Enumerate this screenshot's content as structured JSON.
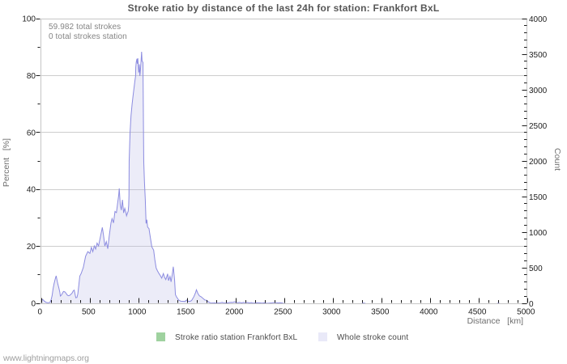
{
  "footer": "www.lightningmaps.org",
  "chart_data": {
    "type": "area",
    "title": "Stroke ratio by distance of the last 24h for station: Frankfort BxL",
    "annotations": [
      "59.982 total strokes",
      "0 total strokes station"
    ],
    "x_axis": {
      "title": "Distance   [km]",
      "min": 0,
      "max": 5000,
      "major_tick": 500,
      "minor_tick": 100,
      "tick_labels": [
        "0",
        "500",
        "1000",
        "1500",
        "2000",
        "2500",
        "3000",
        "3500",
        "4000",
        "4500",
        "5000"
      ]
    },
    "y_axis_left": {
      "title": "Percent   [%]",
      "min": 0,
      "max": 100,
      "major_tick": 20,
      "minor_tick": 10,
      "tick_labels": [
        "0",
        "20",
        "40",
        "60",
        "80",
        "100"
      ]
    },
    "y_axis_right": {
      "title": "Count",
      "min": 0,
      "max": 4000,
      "major_tick": 500,
      "minor_tick": 100,
      "tick_labels": [
        "0",
        "500",
        "1000",
        "1500",
        "2000",
        "2500",
        "3000",
        "3500",
        "4000"
      ]
    },
    "grid": {
      "horizontal_at_percent": [
        20,
        40,
        60,
        80
      ],
      "vertical": false
    },
    "legend": [
      {
        "name": "Stroke ratio station Frankfort BxL",
        "color": "#9fd29f"
      },
      {
        "name": "Whole stroke count",
        "color": "#e9e9f8"
      }
    ],
    "series": [
      {
        "name": "Stroke ratio station Frankfort BxL",
        "axis": "left",
        "unit": "percent",
        "line_color": "#9fd29f",
        "fill_color": "#e4f2e4",
        "points": []
      },
      {
        "name": "Whole stroke count",
        "axis": "right",
        "unit": "strokes",
        "line_color": "#8c8ce0",
        "fill_color": "rgba(184,184,230,0.27)",
        "points": [
          [
            0,
            28
          ],
          [
            8,
            40
          ],
          [
            15,
            60
          ],
          [
            25,
            52
          ],
          [
            35,
            36
          ],
          [
            45,
            28
          ],
          [
            55,
            18
          ],
          [
            70,
            14
          ],
          [
            85,
            16
          ],
          [
            95,
            24
          ],
          [
            105,
            56
          ],
          [
            115,
            112
          ],
          [
            125,
            208
          ],
          [
            135,
            280
          ],
          [
            148,
            352
          ],
          [
            157,
            392
          ],
          [
            165,
            336
          ],
          [
            175,
            272
          ],
          [
            185,
            220
          ],
          [
            195,
            160
          ],
          [
            200,
            108
          ],
          [
            210,
            120
          ],
          [
            220,
            144
          ],
          [
            232,
            172
          ],
          [
            245,
            168
          ],
          [
            258,
            148
          ],
          [
            270,
            124
          ],
          [
            282,
            112
          ],
          [
            295,
            116
          ],
          [
            308,
            132
          ],
          [
            320,
            148
          ],
          [
            332,
            180
          ],
          [
            343,
            192
          ],
          [
            351,
            136
          ],
          [
            359,
            84
          ],
          [
            371,
            88
          ],
          [
            380,
            140
          ],
          [
            390,
            260
          ],
          [
            400,
            388
          ],
          [
            415,
            428
          ],
          [
            436,
            508
          ],
          [
            460,
            668
          ],
          [
            483,
            732
          ],
          [
            504,
            708
          ],
          [
            519,
            792
          ],
          [
            534,
            732
          ],
          [
            549,
            812
          ],
          [
            563,
            768
          ],
          [
            578,
            852
          ],
          [
            593,
            812
          ],
          [
            608,
            912
          ],
          [
            623,
            1012
          ],
          [
            632,
            1072
          ],
          [
            643,
            972
          ],
          [
            658,
            812
          ],
          [
            673,
            872
          ],
          [
            688,
            772
          ],
          [
            703,
            952
          ],
          [
            721,
            1136
          ],
          [
            732,
            1196
          ],
          [
            747,
            1136
          ],
          [
            762,
            1296
          ],
          [
            777,
            1280
          ],
          [
            790,
            1420
          ],
          [
            800,
            1520
          ],
          [
            806,
            1620
          ],
          [
            816,
            1396
          ],
          [
            827,
            1316
          ],
          [
            839,
            1460
          ],
          [
            851,
            1276
          ],
          [
            863,
            1340
          ],
          [
            875,
            1280
          ],
          [
            881,
            1236
          ],
          [
            890,
            1272
          ],
          [
            898,
            1300
          ],
          [
            903,
            1380
          ],
          [
            906,
            1520
          ],
          [
            908,
            2000
          ],
          [
            917,
            2400
          ],
          [
            927,
            2640
          ],
          [
            938,
            2800
          ],
          [
            948,
            2920
          ],
          [
            958,
            3030
          ],
          [
            966,
            3120
          ],
          [
            974,
            3200
          ],
          [
            976,
            3320
          ],
          [
            981,
            3396
          ],
          [
            988,
            3440
          ],
          [
            992,
            3372
          ],
          [
            997,
            3448
          ],
          [
            1002,
            3340
          ],
          [
            1006,
            3256
          ],
          [
            1010,
            3264
          ],
          [
            1013,
            3364
          ],
          [
            1018,
            3200
          ],
          [
            1024,
            3284
          ],
          [
            1030,
            3400
          ],
          [
            1036,
            3540
          ],
          [
            1041,
            3408
          ],
          [
            1050,
            3392
          ],
          [
            1052,
            3040
          ],
          [
            1055,
            2480
          ],
          [
            1058,
            2000
          ],
          [
            1065,
            1720
          ],
          [
            1074,
            1460
          ],
          [
            1082,
            1128
          ],
          [
            1090,
            1180
          ],
          [
            1098,
            1076
          ],
          [
            1112,
            1056
          ],
          [
            1125,
            940
          ],
          [
            1141,
            800
          ],
          [
            1160,
            752
          ],
          [
            1172,
            620
          ],
          [
            1186,
            500
          ],
          [
            1200,
            460
          ],
          [
            1215,
            424
          ],
          [
            1230,
            392
          ],
          [
            1243,
            360
          ],
          [
            1260,
            424
          ],
          [
            1272,
            372
          ],
          [
            1285,
            340
          ],
          [
            1304,
            420
          ],
          [
            1313,
            324
          ],
          [
            1328,
            384
          ],
          [
            1339,
            308
          ],
          [
            1351,
            408
          ],
          [
            1362,
            520
          ],
          [
            1375,
            340
          ],
          [
            1384,
            128
          ],
          [
            1395,
            96
          ],
          [
            1417,
            52
          ],
          [
            1439,
            36
          ],
          [
            1460,
            34
          ],
          [
            1481,
            32
          ],
          [
            1500,
            52
          ],
          [
            1515,
            36
          ],
          [
            1530,
            32
          ],
          [
            1550,
            44
          ],
          [
            1574,
            100
          ],
          [
            1590,
            152
          ],
          [
            1600,
            196
          ],
          [
            1615,
            144
          ],
          [
            1630,
            112
          ],
          [
            1650,
            96
          ],
          [
            1670,
            72
          ],
          [
            1687,
            52
          ],
          [
            1705,
            48
          ],
          [
            1725,
            24
          ],
          [
            1745,
            12
          ],
          [
            1765,
            10
          ],
          [
            1790,
            12
          ],
          [
            1815,
            8
          ],
          [
            1840,
            12
          ],
          [
            1865,
            18
          ],
          [
            1885,
            12
          ],
          [
            1910,
            10
          ],
          [
            1935,
            16
          ],
          [
            1955,
            20
          ],
          [
            1975,
            18
          ],
          [
            1990,
            28
          ],
          [
            2005,
            20
          ],
          [
            2025,
            14
          ],
          [
            2045,
            18
          ],
          [
            2065,
            12
          ],
          [
            2085,
            18
          ],
          [
            2105,
            14
          ],
          [
            2125,
            18
          ],
          [
            2145,
            12
          ],
          [
            2165,
            16
          ],
          [
            2185,
            8
          ],
          [
            2210,
            12
          ],
          [
            2230,
            14
          ],
          [
            2255,
            12
          ],
          [
            2275,
            8
          ],
          [
            2300,
            12
          ],
          [
            2325,
            6
          ],
          [
            2350,
            8
          ],
          [
            2375,
            12
          ],
          [
            2400,
            18
          ],
          [
            2420,
            16
          ],
          [
            2440,
            12
          ],
          [
            2460,
            14
          ],
          [
            2480,
            10
          ],
          [
            2500,
            4
          ],
          [
            2520,
            0
          ],
          [
            3300,
            0
          ],
          [
            3320,
            10
          ],
          [
            3345,
            0
          ],
          [
            4690,
            0
          ],
          [
            4706,
            8
          ],
          [
            4722,
            0
          ],
          [
            5000,
            0
          ]
        ]
      }
    ]
  }
}
